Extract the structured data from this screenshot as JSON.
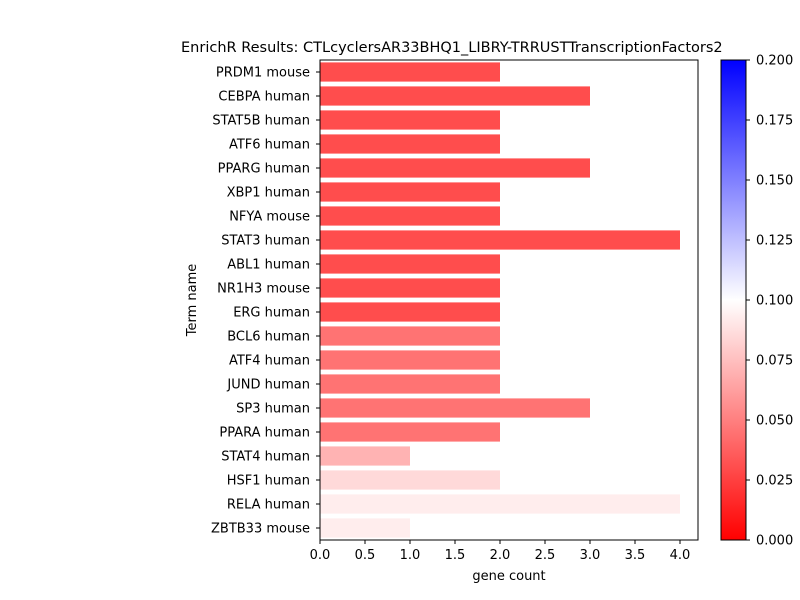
{
  "chart_data": {
    "type": "bar",
    "orientation": "horizontal",
    "title": "EnrichR Results: CTLcyclersAR33BHQ1_LIBRY-TRRUSTTranscriptionFactors2",
    "xlabel": "gene count",
    "ylabel": "Term name",
    "xlim": [
      0,
      4.2
    ],
    "x_ticks": [
      "0.0",
      "0.5",
      "1.0",
      "1.5",
      "2.0",
      "2.5",
      "3.0",
      "3.5",
      "4.0"
    ],
    "grid": false,
    "bars": [
      {
        "label": "PRDM1 mouse",
        "value": 2,
        "color_value": 0.03
      },
      {
        "label": "CEBPA human",
        "value": 3,
        "color_value": 0.03
      },
      {
        "label": "STAT5B human",
        "value": 2,
        "color_value": 0.03
      },
      {
        "label": "ATF6 human",
        "value": 2,
        "color_value": 0.03
      },
      {
        "label": "PPARG human",
        "value": 3,
        "color_value": 0.03
      },
      {
        "label": "XBP1 human",
        "value": 2,
        "color_value": 0.03
      },
      {
        "label": "NFYA mouse",
        "value": 2,
        "color_value": 0.03
      },
      {
        "label": "STAT3 human",
        "value": 4,
        "color_value": 0.03
      },
      {
        "label": "ABL1 human",
        "value": 2,
        "color_value": 0.03
      },
      {
        "label": "NR1H3 mouse",
        "value": 2,
        "color_value": 0.03
      },
      {
        "label": "ERG human",
        "value": 2,
        "color_value": 0.03
      },
      {
        "label": "BCL6 human",
        "value": 2,
        "color_value": 0.045
      },
      {
        "label": "ATF4 human",
        "value": 2,
        "color_value": 0.045
      },
      {
        "label": "JUND human",
        "value": 2,
        "color_value": 0.045
      },
      {
        "label": "SP3 human",
        "value": 3,
        "color_value": 0.045
      },
      {
        "label": "PPARA human",
        "value": 2,
        "color_value": 0.045
      },
      {
        "label": "STAT4 human",
        "value": 1,
        "color_value": 0.07
      },
      {
        "label": "HSF1 human",
        "value": 2,
        "color_value": 0.085
      },
      {
        "label": "RELA human",
        "value": 4,
        "color_value": 0.093
      },
      {
        "label": "ZBTB33 mouse",
        "value": 1,
        "color_value": 0.093
      }
    ],
    "colorbar": {
      "min": 0.0,
      "max": 0.2,
      "ticks": [
        "0.000",
        "0.025",
        "0.050",
        "0.075",
        "0.100",
        "0.125",
        "0.150",
        "0.175",
        "0.200"
      ],
      "colormap": "bwr_r",
      "color_low": "#ff0000",
      "color_mid": "#ffffff",
      "color_high": "#0000ff"
    }
  }
}
